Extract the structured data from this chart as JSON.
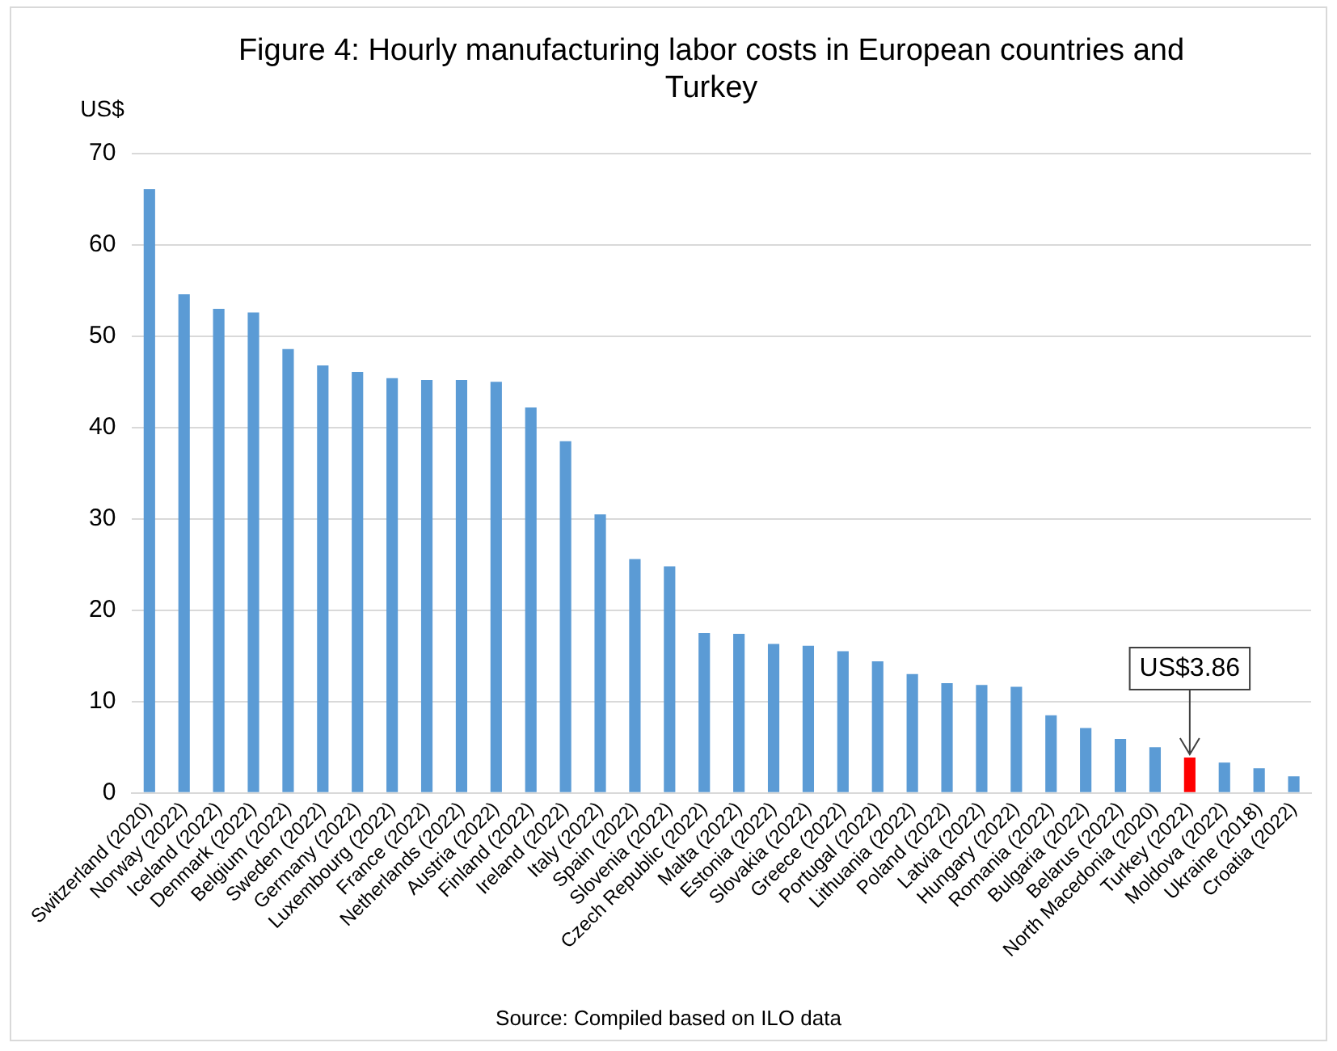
{
  "chart_data": {
    "type": "bar",
    "title": "Figure 4: Hourly manufacturing labor costs in European countries and Turkey",
    "ylabel": "US$",
    "categories": [
      "Switzerland (2020)",
      "Norway (2022)",
      "Iceland (2022)",
      "Denmark (2022)",
      "Belgium (2022)",
      "Sweden (2022)",
      "Germany (2022)",
      "Luxembourg (2022)",
      "France (2022)",
      "Netherlands (2022)",
      "Austria (2022)",
      "Finland (2022)",
      "Ireland (2022)",
      "Italy (2022)",
      "Spain (2022)",
      "Slovenia (2022)",
      "Czech Republic (2022)",
      "Malta (2022)",
      "Estonia (2022)",
      "Slovakia (2022)",
      "Greece (2022)",
      "Portugal (2022)",
      "Lithuania (2022)",
      "Poland (2022)",
      "Latvia (2022)",
      "Hungary (2022)",
      "Romania (2022)",
      "Bulgaria (2022)",
      "Belarus (2022)",
      "North Macedonia (2020)",
      "Turkey (2022)",
      "Moldova (2022)",
      "Ukraine (2018)",
      "Croatia (2022)"
    ],
    "values": [
      66.1,
      54.6,
      53.0,
      52.6,
      48.6,
      46.8,
      46.1,
      45.4,
      45.2,
      45.2,
      45.0,
      42.2,
      38.5,
      30.5,
      25.6,
      24.8,
      17.5,
      17.4,
      16.3,
      16.1,
      15.5,
      14.4,
      13.0,
      12.0,
      11.8,
      11.6,
      8.5,
      7.1,
      5.9,
      5.0,
      3.86,
      3.3,
      2.7,
      1.8
    ],
    "colors": [
      "#5b9bd5",
      "#5b9bd5",
      "#5b9bd5",
      "#5b9bd5",
      "#5b9bd5",
      "#5b9bd5",
      "#5b9bd5",
      "#5b9bd5",
      "#5b9bd5",
      "#5b9bd5",
      "#5b9bd5",
      "#5b9bd5",
      "#5b9bd5",
      "#5b9bd5",
      "#5b9bd5",
      "#5b9bd5",
      "#5b9bd5",
      "#5b9bd5",
      "#5b9bd5",
      "#5b9bd5",
      "#5b9bd5",
      "#5b9bd5",
      "#5b9bd5",
      "#5b9bd5",
      "#5b9bd5",
      "#5b9bd5",
      "#5b9bd5",
      "#5b9bd5",
      "#5b9bd5",
      "#5b9bd5",
      "#ff0000",
      "#5b9bd5",
      "#5b9bd5",
      "#5b9bd5"
    ],
    "ylim": [
      0,
      70
    ],
    "yticks": [
      0,
      10,
      20,
      30,
      40,
      50,
      60,
      70
    ],
    "grid": "y",
    "legend": false,
    "annotations": [
      {
        "text": "US$3.86",
        "x": "Turkey (2022)",
        "y": 3.86
      },
      "Source: Compiled based on ILO data"
    ]
  }
}
